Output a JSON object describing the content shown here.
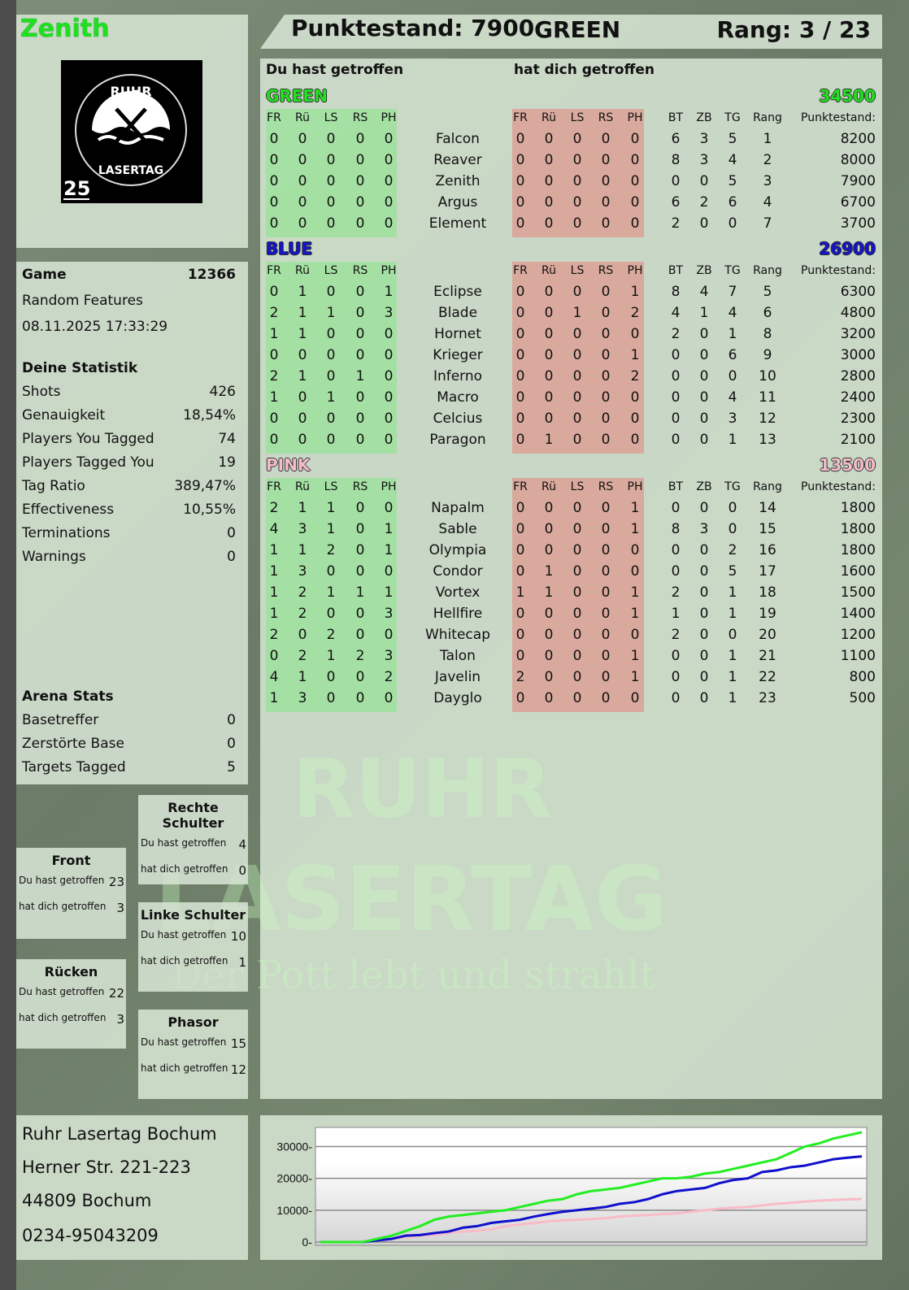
{
  "player": {
    "name": "Zenith",
    "logo_text": "RUHR LASERTAG 25"
  },
  "header": {
    "score_label": "Punktestand: 7900",
    "team": "GREEN",
    "rank": "Rang: 3 / 23"
  },
  "main": {
    "you_hit": "Du hast getroffen",
    "hit_you": "hat dich getroffen"
  },
  "columns": {
    "hit": [
      "FR",
      "Rü",
      "LS",
      "RS",
      "PH"
    ],
    "stats": [
      "BT",
      "ZB",
      "TG",
      "Rang",
      "Punktestand:"
    ]
  },
  "teams": [
    {
      "name": "GREEN",
      "score": "34500",
      "color": "#22e022",
      "players": [
        [
          "Falcon",
          [
            0,
            0,
            0,
            0,
            0
          ],
          [
            0,
            0,
            0,
            0,
            0
          ],
          [
            6,
            3,
            5,
            1,
            8200
          ]
        ],
        [
          "Reaver",
          [
            0,
            0,
            0,
            0,
            0
          ],
          [
            0,
            0,
            0,
            0,
            0
          ],
          [
            8,
            3,
            4,
            2,
            8000
          ]
        ],
        [
          "Zenith",
          [
            0,
            0,
            0,
            0,
            0
          ],
          [
            0,
            0,
            0,
            0,
            0
          ],
          [
            0,
            0,
            5,
            3,
            7900
          ]
        ],
        [
          "Argus",
          [
            0,
            0,
            0,
            0,
            0
          ],
          [
            0,
            0,
            0,
            0,
            0
          ],
          [
            6,
            2,
            6,
            4,
            6700
          ]
        ],
        [
          "Element",
          [
            0,
            0,
            0,
            0,
            0
          ],
          [
            0,
            0,
            0,
            0,
            0
          ],
          [
            2,
            0,
            0,
            7,
            3700
          ]
        ]
      ]
    },
    {
      "name": "BLUE",
      "score": "26900",
      "color": "#1414c8",
      "players": [
        [
          "Eclipse",
          [
            0,
            1,
            0,
            0,
            1
          ],
          [
            0,
            0,
            0,
            0,
            1
          ],
          [
            8,
            4,
            7,
            5,
            6300
          ]
        ],
        [
          "Blade",
          [
            2,
            1,
            1,
            0,
            3
          ],
          [
            0,
            0,
            1,
            0,
            2
          ],
          [
            4,
            1,
            4,
            6,
            4800
          ]
        ],
        [
          "Hornet",
          [
            1,
            1,
            0,
            0,
            0
          ],
          [
            0,
            0,
            0,
            0,
            0
          ],
          [
            2,
            0,
            1,
            8,
            3200
          ]
        ],
        [
          "Krieger",
          [
            0,
            0,
            0,
            0,
            0
          ],
          [
            0,
            0,
            0,
            0,
            1
          ],
          [
            0,
            0,
            6,
            9,
            3000
          ]
        ],
        [
          "Inferno",
          [
            2,
            1,
            0,
            1,
            0
          ],
          [
            0,
            0,
            0,
            0,
            2
          ],
          [
            0,
            0,
            0,
            10,
            2800
          ]
        ],
        [
          "Macro",
          [
            1,
            0,
            1,
            0,
            0
          ],
          [
            0,
            0,
            0,
            0,
            0
          ],
          [
            0,
            0,
            4,
            11,
            2400
          ]
        ],
        [
          "Celcius",
          [
            0,
            0,
            0,
            0,
            0
          ],
          [
            0,
            0,
            0,
            0,
            0
          ],
          [
            0,
            0,
            3,
            12,
            2300
          ]
        ],
        [
          "Paragon",
          [
            0,
            0,
            0,
            0,
            0
          ],
          [
            0,
            1,
            0,
            0,
            0
          ],
          [
            0,
            0,
            1,
            13,
            2100
          ]
        ]
      ]
    },
    {
      "name": "PINK",
      "score": "13500",
      "color": "#f5bcc9",
      "players": [
        [
          "Napalm",
          [
            2,
            1,
            1,
            0,
            0
          ],
          [
            0,
            0,
            0,
            0,
            1
          ],
          [
            0,
            0,
            0,
            14,
            1800
          ]
        ],
        [
          "Sable",
          [
            4,
            3,
            1,
            0,
            1
          ],
          [
            0,
            0,
            0,
            0,
            1
          ],
          [
            8,
            3,
            0,
            15,
            1800
          ]
        ],
        [
          "Olympia",
          [
            1,
            1,
            2,
            0,
            1
          ],
          [
            0,
            0,
            0,
            0,
            0
          ],
          [
            0,
            0,
            2,
            16,
            1800
          ]
        ],
        [
          "Condor",
          [
            1,
            3,
            0,
            0,
            0
          ],
          [
            0,
            1,
            0,
            0,
            0
          ],
          [
            0,
            0,
            5,
            17,
            1600
          ]
        ],
        [
          "Vortex",
          [
            1,
            2,
            1,
            1,
            1
          ],
          [
            1,
            1,
            0,
            0,
            1
          ],
          [
            2,
            0,
            1,
            18,
            1500
          ]
        ],
        [
          "Hellfire",
          [
            1,
            2,
            0,
            0,
            3
          ],
          [
            0,
            0,
            0,
            0,
            1
          ],
          [
            1,
            0,
            1,
            19,
            1400
          ]
        ],
        [
          "Whitecap",
          [
            2,
            0,
            2,
            0,
            0
          ],
          [
            0,
            0,
            0,
            0,
            0
          ],
          [
            2,
            0,
            0,
            20,
            1200
          ]
        ],
        [
          "Talon",
          [
            0,
            2,
            1,
            2,
            3
          ],
          [
            0,
            0,
            0,
            0,
            1
          ],
          [
            0,
            0,
            1,
            21,
            1100
          ]
        ],
        [
          "Javelin",
          [
            4,
            1,
            0,
            0,
            2
          ],
          [
            2,
            0,
            0,
            0,
            1
          ],
          [
            0,
            0,
            1,
            22,
            800
          ]
        ],
        [
          "Dayglo",
          [
            1,
            3,
            0,
            0,
            0
          ],
          [
            0,
            0,
            0,
            0,
            0
          ],
          [
            0,
            0,
            1,
            23,
            500
          ]
        ]
      ]
    }
  ],
  "game": {
    "label": "Game",
    "id": "12366",
    "mode": "Random Features",
    "datetime": "08.11.2025 17:33:29"
  },
  "stats": {
    "title": "Deine Statistik",
    "rows": [
      [
        "Shots",
        "426"
      ],
      [
        "Genauigkeit",
        "18,54%"
      ],
      [
        "Players You Tagged",
        "74"
      ],
      [
        "Players Tagged You",
        "19"
      ],
      [
        "Tag Ratio",
        "389,47%"
      ],
      [
        "Effectiveness",
        "10,55%"
      ],
      [
        "Terminations",
        "0"
      ],
      [
        "Warnings",
        "0"
      ]
    ]
  },
  "arena": {
    "title": "Arena Stats",
    "rows": [
      [
        "Basetreffer",
        "0"
      ],
      [
        "Zerstörte Base",
        "0"
      ],
      [
        "Targets Tagged",
        "5"
      ]
    ]
  },
  "body": {
    "right_shoulder": {
      "title": "Rechte Schulter",
      "you_hit": "4",
      "hit_you": "0"
    },
    "front": {
      "title": "Front",
      "you_hit": "23",
      "hit_you": "3"
    },
    "left_shoulder": {
      "title": "Linke Schulter",
      "you_hit": "10",
      "hit_you": "1"
    },
    "back": {
      "title": "Rücken",
      "you_hit": "22",
      "hit_you": "3"
    },
    "phasor": {
      "title": "Phasor",
      "you_hit": "15",
      "hit_you": "12"
    },
    "you_hit_label": "Du hast getroffen",
    "hit_you_label": "hat dich getroffen"
  },
  "address": {
    "name": "Ruhr Lasertag Bochum",
    "street": "Herner Str. 221-223",
    "city": "44809 Bochum",
    "phone": "0234-95043209"
  },
  "watermark": {
    "line1": "RUHR",
    "line2": "LASERTAG",
    "tagline": "Der Pott lebt und strahlt"
  },
  "chart_data": {
    "type": "line",
    "ylim": [
      0,
      36000
    ],
    "yticks": [
      "0",
      "10000",
      "20000",
      "30000"
    ],
    "grid": true,
    "series": [
      {
        "color": "#22ee22",
        "values": [
          0,
          0,
          0,
          0,
          1000,
          2000,
          3500,
          5000,
          7000,
          8000,
          8500,
          9000,
          9500,
          10000,
          11000,
          12000,
          13000,
          13500,
          15000,
          16000,
          16500,
          17000,
          18000,
          19000,
          20000,
          20000,
          20500,
          21500,
          22000,
          23000,
          24000,
          25000,
          26000,
          28000,
          30000,
          31000,
          32500,
          33500,
          34500
        ]
      },
      {
        "color": "#1010cc",
        "values": [
          0,
          0,
          0,
          0,
          500,
          1000,
          2000,
          2200,
          2800,
          3300,
          4500,
          5000,
          6000,
          6500,
          7000,
          8000,
          8800,
          9500,
          10000,
          10500,
          11000,
          12000,
          12500,
          13500,
          15000,
          16000,
          16500,
          17000,
          18500,
          19500,
          20000,
          22000,
          22500,
          23500,
          24000,
          25000,
          26000,
          26500,
          26900
        ]
      },
      {
        "color": "#f8bcc8",
        "values": [
          0,
          0,
          0,
          0,
          500,
          1000,
          1500,
          2000,
          2200,
          2800,
          3300,
          3500,
          4000,
          5000,
          5500,
          6000,
          6500,
          6800,
          7000,
          7200,
          7500,
          8000,
          8300,
          8500,
          8800,
          9000,
          9500,
          10000,
          10500,
          10800,
          11000,
          11500,
          12000,
          12300,
          12700,
          13000,
          13200,
          13400,
          13500
        ]
      }
    ]
  }
}
